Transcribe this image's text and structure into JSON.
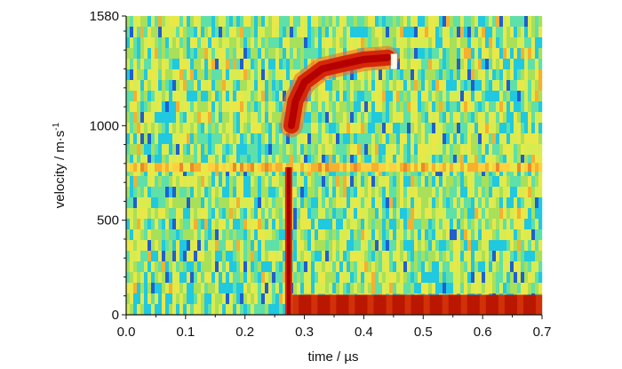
{
  "chart_data": {
    "type": "heatmap",
    "title": "",
    "xlabel": "time / µs",
    "ylabel_main": "velocity / m·s",
    "ylabel_sup": "-1",
    "xlim": [
      0.0,
      0.7
    ],
    "ylim": [
      0,
      1580
    ],
    "x_ticks": [
      "0.0",
      "0.1",
      "0.2",
      "0.3",
      "0.4",
      "0.5",
      "0.6",
      "0.7"
    ],
    "x_tick_values": [
      0.0,
      0.1,
      0.2,
      0.3,
      0.4,
      0.5,
      0.6,
      0.7
    ],
    "y_ticks": [
      "0",
      "500",
      "1000",
      "1580"
    ],
    "y_tick_values": [
      0,
      500,
      1000,
      1580
    ],
    "background": "noise, green-yellow-cyan (low intensity)",
    "colormap": [
      "#1f3fbf",
      "#20c8e0",
      "#5ee0a8",
      "#a8e05a",
      "#e8e848",
      "#f5b030",
      "#e23c10",
      "#b80000",
      "#ffffff"
    ],
    "signal_traces": [
      {
        "segment": "baseline",
        "points": [
          [
            0.28,
            40
          ],
          [
            0.7,
            40
          ]
        ],
        "intensity": "high"
      },
      {
        "segment": "jump",
        "points": [
          [
            0.272,
            0
          ],
          [
            0.275,
            780
          ]
        ],
        "intensity": "high"
      },
      {
        "segment": "acceleration",
        "points": [
          [
            0.278,
            1000
          ],
          [
            0.285,
            1130
          ],
          [
            0.3,
            1230
          ],
          [
            0.33,
            1300
          ],
          [
            0.37,
            1330
          ],
          [
            0.4,
            1350
          ],
          [
            0.44,
            1360
          ]
        ],
        "intensity": "high"
      },
      {
        "segment": "end-marker",
        "points": [
          [
            0.45,
            1300
          ],
          [
            0.455,
            1380
          ]
        ],
        "intensity": "peak"
      }
    ],
    "noisy_row_velocity": 780
  }
}
